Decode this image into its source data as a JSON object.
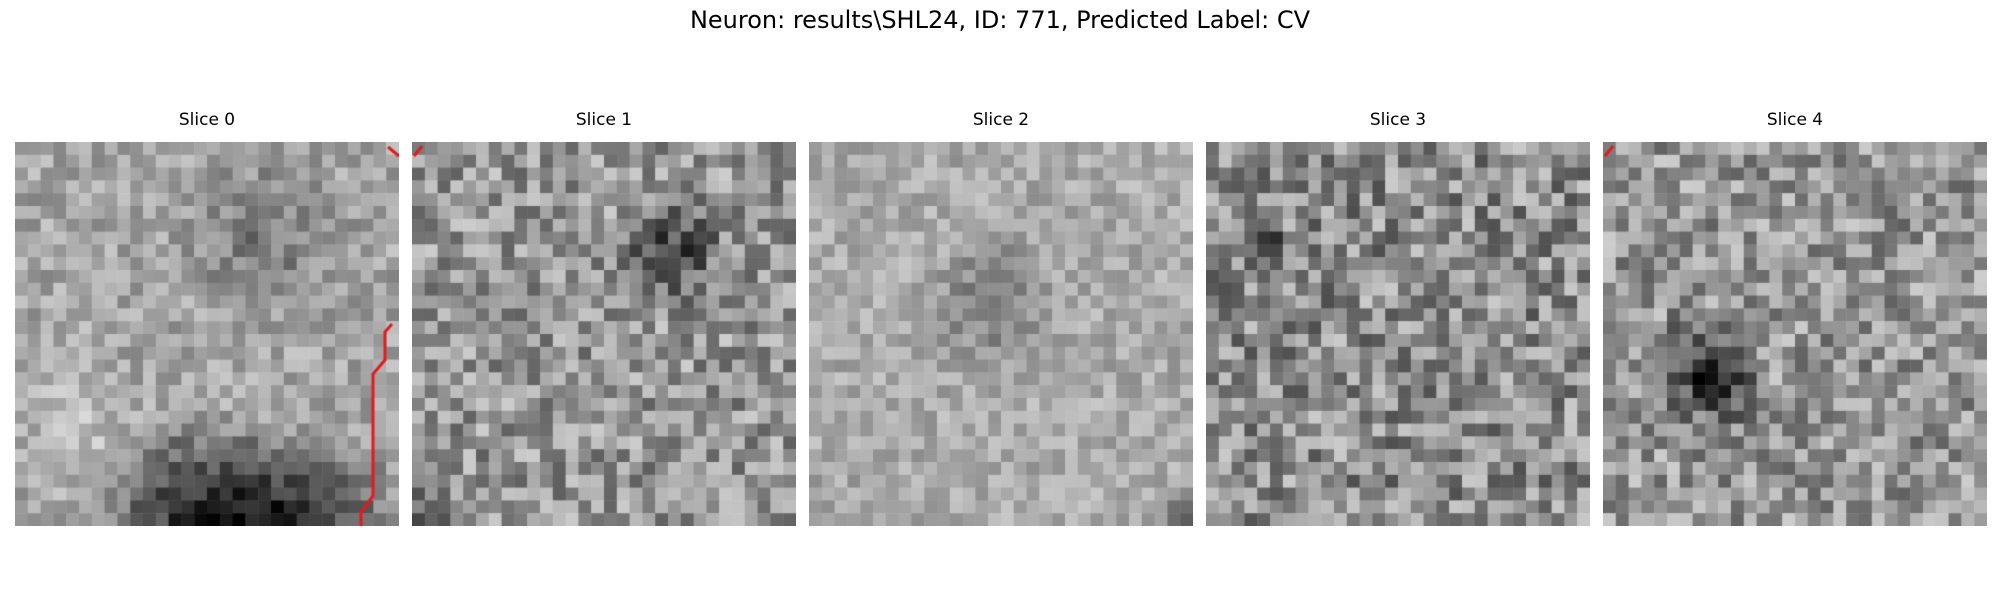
{
  "figure": {
    "title": "Neuron: results\\SHL24, ID: 771, Predicted Label: CV",
    "contour_color": "#e41a1c",
    "colormap": "gray"
  },
  "panels": [
    {
      "title": "Slice 0"
    },
    {
      "title": "Slice 1"
    },
    {
      "title": "Slice 2"
    },
    {
      "title": "Slice 3"
    },
    {
      "title": "Slice 4"
    }
  ]
}
